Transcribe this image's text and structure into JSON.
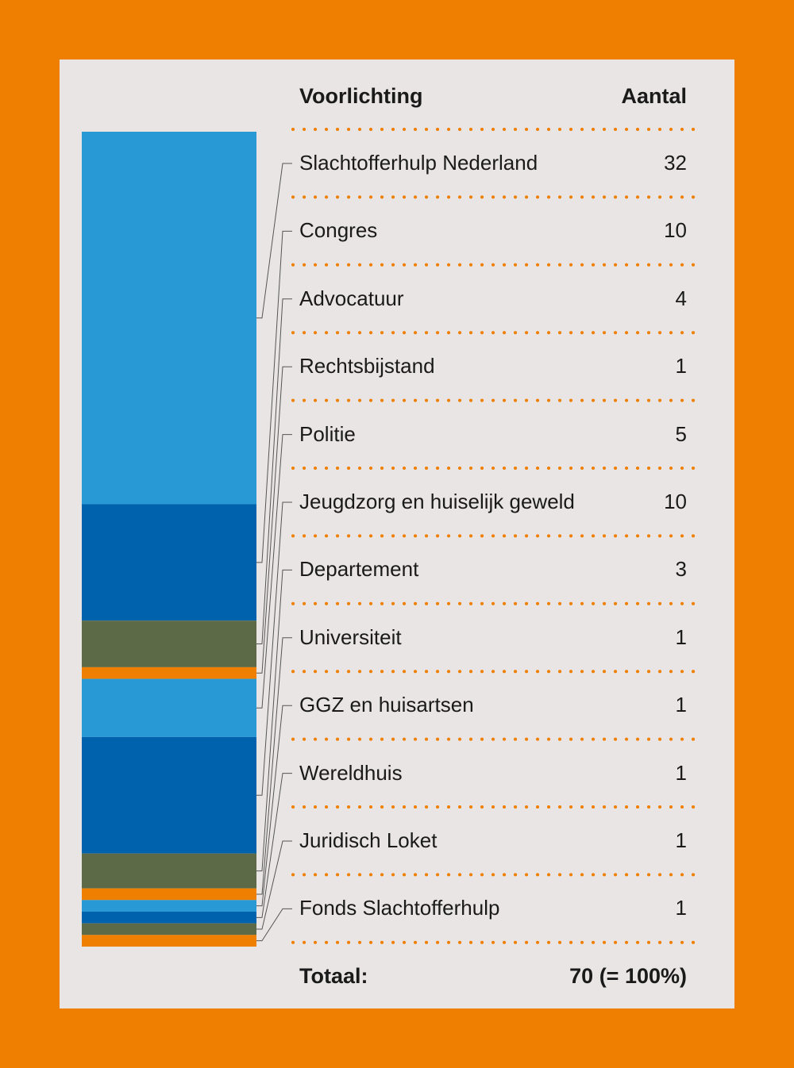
{
  "chart_data": {
    "type": "bar",
    "layout": "stacked-single-column",
    "header": {
      "category_label": "Voorlichting",
      "value_label": "Aantal"
    },
    "categories": [
      "Slachtofferhulp Nederland",
      "Congres",
      "Advocatuur",
      "Rechtsbijstand",
      "Politie",
      "Jeugdzorg en huiselijk geweld",
      "Departement",
      "Universiteit",
      "GGZ en huisartsen",
      "Wereldhuis",
      "Juridisch Loket",
      "Fonds Slachtofferhulp"
    ],
    "values": [
      32,
      10,
      4,
      1,
      5,
      10,
      3,
      1,
      1,
      1,
      1,
      1
    ],
    "segment_colors": [
      "#2899d5",
      "#0062ac",
      "#5c6a47",
      "#ee7f00"
    ],
    "total": {
      "label": "Totaal:",
      "value": "70 (= 100%)"
    },
    "grid": false,
    "legend": "right, row-aligned with connector lines"
  },
  "colors": {
    "background": "#ee7f00",
    "panel": "#e9e5e5",
    "dotted_separator": "#ee7f00",
    "text": "#1a1a1a",
    "connector": "#555555"
  }
}
